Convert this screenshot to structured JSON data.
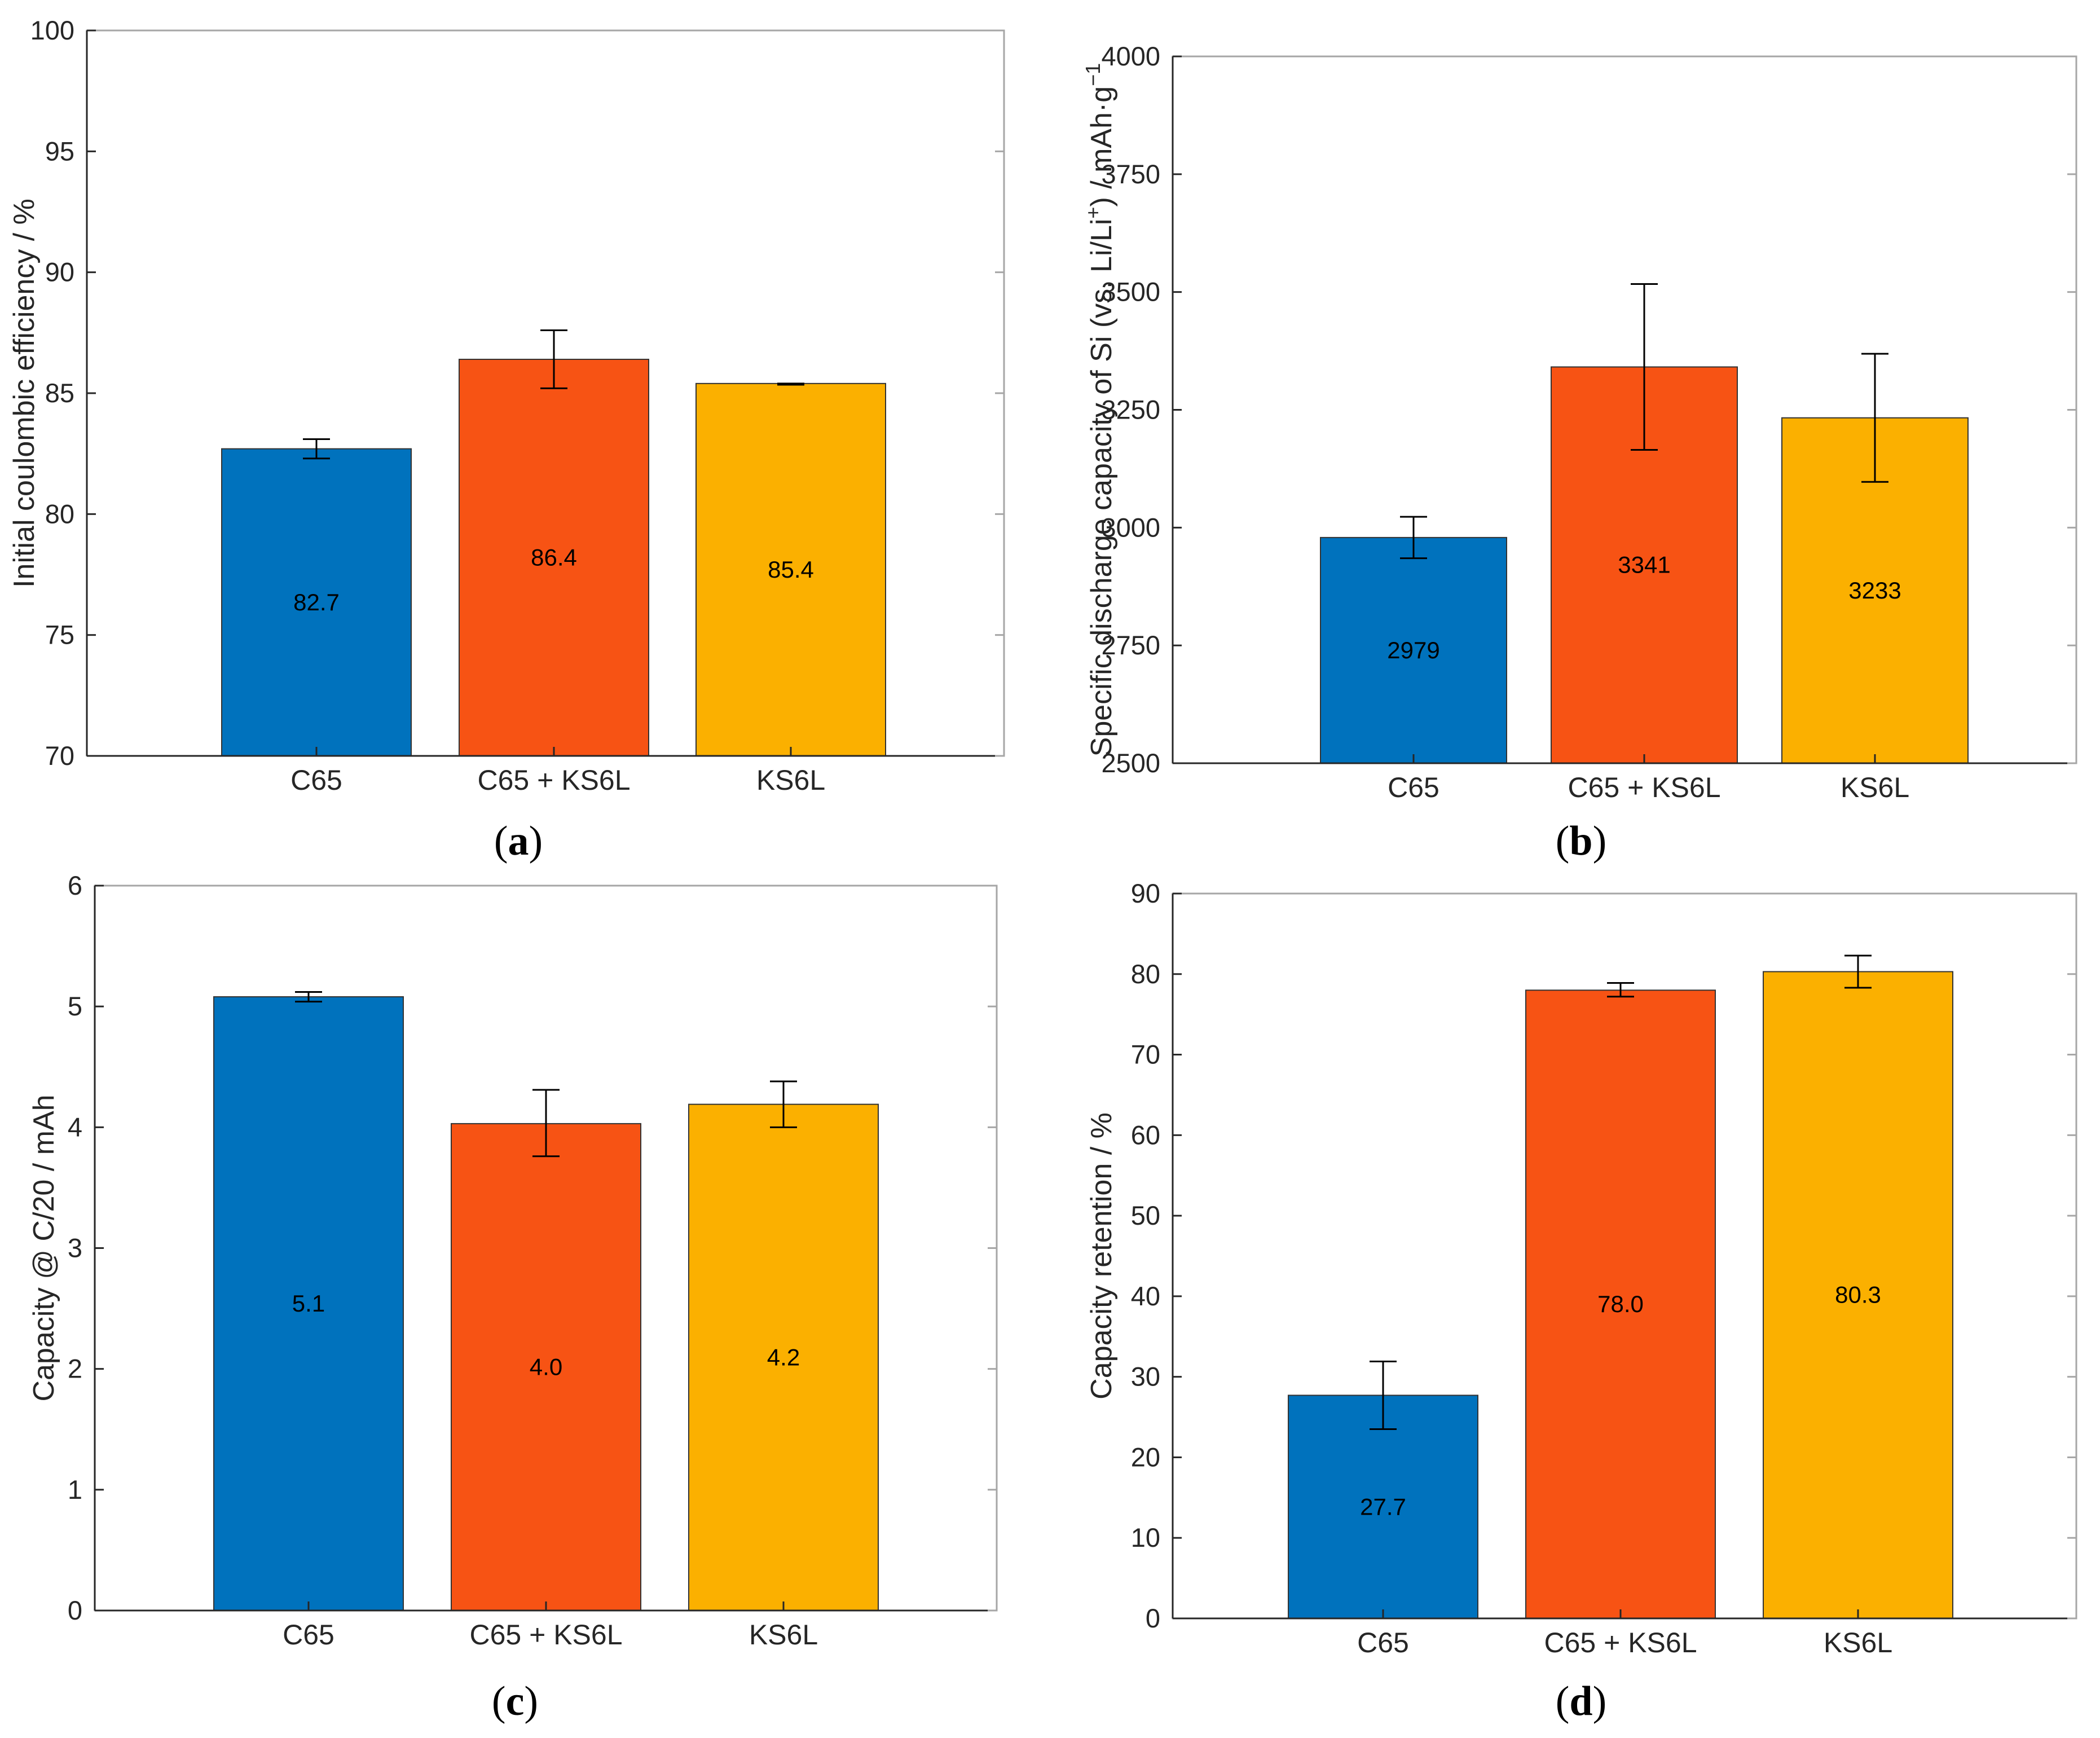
{
  "colors": {
    "C65": "#0072BD",
    "C65 + KS6L": "#F75314",
    "KS6L": "#FBB000",
    "axis": "#262626",
    "frame": "#A6A6A6",
    "error_bar": "#000000"
  },
  "chart_data": [
    {
      "id": "a",
      "type": "bar",
      "caption_open": "(",
      "caption_letter": "a",
      "caption_close": ")",
      "ylabel": "Initial coulombic efficiency / %",
      "categories": [
        "C65",
        "C65 + KS6L",
        "KS6L"
      ],
      "values": [
        82.7,
        86.4,
        85.4
      ],
      "value_labels": [
        "82.7",
        "86.4",
        "85.4"
      ],
      "error_low": [
        82.3,
        85.2,
        85.35
      ],
      "error_high": [
        83.1,
        87.6,
        85.4
      ],
      "ylim": [
        70,
        100
      ],
      "yticks": [
        70,
        75,
        80,
        85,
        90,
        95,
        100
      ],
      "ytick_labels": [
        "70",
        "75",
        "80",
        "85",
        "90",
        "95",
        "100"
      ]
    },
    {
      "id": "b",
      "type": "bar",
      "caption_open": "(",
      "caption_letter": "b",
      "caption_close": ")",
      "ylabel": "Specific discharge capacity of Si (vs. Li/Li",
      "ylabel_sup": "+",
      "ylabel_mid": ") / mAh·g",
      "ylabel_sup2": "−1",
      "categories": [
        "C65",
        "C65 + KS6L",
        "KS6L"
      ],
      "values": [
        2979,
        3341,
        3233
      ],
      "value_labels": [
        "2979",
        "3341",
        "3233"
      ],
      "error_low": [
        2935,
        3165,
        3097
      ],
      "error_high": [
        3023,
        3517,
        3369
      ],
      "ylim": [
        2500,
        4000
      ],
      "yticks": [
        2500,
        2750,
        3000,
        3250,
        3500,
        3750,
        4000
      ],
      "ytick_labels": [
        "2500",
        "2750",
        "3000",
        "3250",
        "3500",
        "3750",
        "4000"
      ]
    },
    {
      "id": "c",
      "type": "bar",
      "caption_open": "(",
      "caption_letter": "c",
      "caption_close": ")",
      "ylabel": "Capacity @ C/20 / mAh",
      "categories": [
        "C65",
        "C65 + KS6L",
        "KS6L"
      ],
      "values": [
        5.08,
        4.03,
        4.19
      ],
      "value_labels": [
        "5.1",
        "4.0",
        "4.2"
      ],
      "error_low": [
        5.04,
        3.76,
        4.0
      ],
      "error_high": [
        5.12,
        4.31,
        4.38
      ],
      "ylim": [
        0,
        6
      ],
      "yticks": [
        0,
        1,
        2,
        3,
        4,
        5,
        6
      ],
      "ytick_labels": [
        "0",
        "1",
        "2",
        "3",
        "4",
        "5",
        "6"
      ]
    },
    {
      "id": "d",
      "type": "bar",
      "caption_open": "(",
      "caption_letter": "d",
      "caption_close": ")",
      "ylabel": "Capacity retention / %",
      "categories": [
        "C65",
        "C65 + KS6L",
        "KS6L"
      ],
      "values": [
        27.7,
        78.0,
        80.3
      ],
      "value_labels": [
        "27.7",
        "78.0",
        "80.3"
      ],
      "error_low": [
        23.5,
        77.2,
        78.3
      ],
      "error_high": [
        31.9,
        78.9,
        82.3
      ],
      "ylim": [
        0,
        90
      ],
      "yticks": [
        0,
        10,
        20,
        30,
        40,
        50,
        60,
        70,
        80,
        90
      ],
      "ytick_labels": [
        "0",
        "10",
        "20",
        "30",
        "40",
        "50",
        "60",
        "70",
        "80",
        "90"
      ]
    }
  ]
}
